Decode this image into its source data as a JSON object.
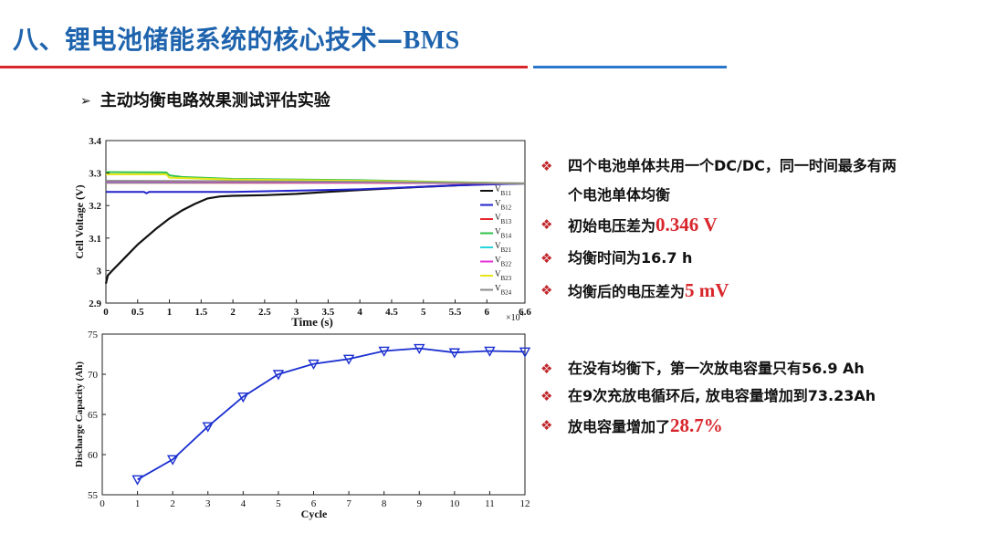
{
  "title": {
    "cn": "八、锂电池储能系统的核心技术—",
    "en": "BMS"
  },
  "subtitle": {
    "arrow": "➢",
    "text": "主动均衡电路效果测试评估实验"
  },
  "bullets_top": [
    {
      "marker": "❖",
      "line1": "四个电池单体共用一个DC/DC，同一时间最多有两",
      "line2": "个电池单体均衡"
    },
    {
      "marker": "❖",
      "text": "初始电压差为",
      "highlight": "0.346 V"
    },
    {
      "marker": "❖",
      "text": "均衡时间为16.7 h"
    },
    {
      "marker": "❖",
      "text": "均衡后的电压差为",
      "highlight": "5 mV"
    }
  ],
  "bullets_bottom": [
    {
      "marker": "❖",
      "text": "在没有均衡下，第一次放电容量只有56.9 Ah"
    },
    {
      "marker": "❖",
      "text": "在9次充放电循环后, 放电容量增加到73.23Ah"
    },
    {
      "marker": "❖",
      "text": "放电容量增加了",
      "highlight": "28.7%"
    }
  ],
  "chart_data": [
    {
      "type": "line",
      "xlabel": "Time (s)",
      "ylabel": "Cell Voltage (V)",
      "xlim": [
        0,
        66000
      ],
      "ylim": [
        2.9,
        3.4
      ],
      "x_exponent_label": "×10",
      "x_exponent": "4",
      "xticks": [
        "0",
        "0.5",
        "1",
        "1.5",
        "2",
        "2.5",
        "3",
        "3.5",
        "4",
        "4.5",
        "5",
        "5.5",
        "6",
        "6.6"
      ],
      "xtick_values": [
        0,
        5000,
        10000,
        15000,
        20000,
        25000,
        30000,
        35000,
        40000,
        45000,
        50000,
        55000,
        60000,
        66000
      ],
      "yticks": [
        "2.9",
        "3",
        "3.1",
        "3.2",
        "3.3",
        "3.4"
      ],
      "ytick_values": [
        2.9,
        3.0,
        3.1,
        3.2,
        3.3,
        3.4
      ],
      "grid": false,
      "legend": "right",
      "series": [
        {
          "name": "V",
          "sub": "B11",
          "color": "#111111",
          "x": [
            0,
            300,
            1000,
            3000,
            5000,
            8000,
            10000,
            12000,
            14000,
            16000,
            18000,
            20000,
            25000,
            30000,
            35000,
            40000,
            45000,
            50000,
            55000,
            60000,
            66000
          ],
          "y": [
            2.96,
            2.985,
            3.0,
            3.04,
            3.08,
            3.13,
            3.16,
            3.185,
            3.205,
            3.222,
            3.228,
            3.23,
            3.232,
            3.236,
            3.242,
            3.248,
            3.253,
            3.258,
            3.262,
            3.266,
            3.268
          ]
        },
        {
          "name": "V",
          "sub": "B12",
          "color": "#2222cc",
          "x": [
            0,
            6000,
            6400,
            6800,
            20000,
            40000,
            55000,
            66000
          ],
          "y": [
            3.242,
            3.242,
            3.238,
            3.242,
            3.242,
            3.25,
            3.262,
            3.268
          ]
        },
        {
          "name": "V",
          "sub": "B13",
          "color": "#e8242c",
          "x": [
            0,
            20000,
            40000,
            55000,
            66000
          ],
          "y": [
            3.27,
            3.27,
            3.27,
            3.269,
            3.268
          ]
        },
        {
          "name": "V",
          "sub": "B14",
          "color": "#2fc24a",
          "x": [
            0,
            9500,
            10000,
            12000,
            20000,
            40000,
            55000,
            66000
          ],
          "y": [
            3.303,
            3.302,
            3.293,
            3.288,
            3.282,
            3.278,
            3.272,
            3.268
          ]
        },
        {
          "name": "V",
          "sub": "B21",
          "color": "#27d5dc",
          "x": [
            0,
            20000,
            40000,
            55000,
            66000
          ],
          "y": [
            3.272,
            3.272,
            3.271,
            3.27,
            3.268
          ]
        },
        {
          "name": "V",
          "sub": "B22",
          "color": "#e332d8",
          "x": [
            0,
            20000,
            40000,
            55000,
            66000
          ],
          "y": [
            3.274,
            3.273,
            3.271,
            3.269,
            3.268
          ]
        },
        {
          "name": "V",
          "sub": "B23",
          "color": "#e6e61a",
          "x": [
            0,
            9500,
            10000,
            20000,
            40000,
            55000,
            66000
          ],
          "y": [
            3.296,
            3.296,
            3.286,
            3.28,
            3.276,
            3.271,
            3.268
          ]
        },
        {
          "name": "V",
          "sub": "B24",
          "color": "#8a8a8a",
          "x": [
            0,
            20000,
            40000,
            55000,
            66000
          ],
          "y": [
            3.276,
            3.275,
            3.273,
            3.27,
            3.268
          ]
        }
      ]
    },
    {
      "type": "line",
      "xlabel": "Cycle",
      "ylabel": "Discharge Capacity (Ah)",
      "xlim": [
        0,
        12
      ],
      "ylim": [
        55,
        75
      ],
      "xticks": [
        "0",
        "1",
        "2",
        "3",
        "4",
        "5",
        "6",
        "7",
        "8",
        "9",
        "10",
        "11",
        "12"
      ],
      "xtick_values": [
        0,
        1,
        2,
        3,
        4,
        5,
        6,
        7,
        8,
        9,
        10,
        11,
        12
      ],
      "yticks": [
        "55",
        "60",
        "65",
        "70",
        "75"
      ],
      "ytick_values": [
        55,
        60,
        65,
        70,
        75
      ],
      "grid": false,
      "marker": "triangle-down",
      "color": "#1a2fd0",
      "x": [
        1,
        2,
        3,
        4,
        5,
        6,
        7,
        8,
        9,
        10,
        11,
        12
      ],
      "y": [
        56.9,
        59.4,
        63.5,
        67.2,
        70.0,
        71.3,
        71.9,
        72.9,
        73.23,
        72.7,
        72.9,
        72.8
      ]
    }
  ]
}
